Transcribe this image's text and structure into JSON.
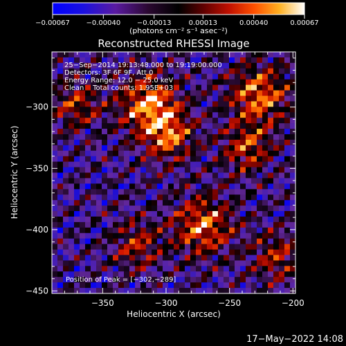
{
  "chart_data": {
    "type": "heatmap",
    "title": "Reconstructed RHESSI Image",
    "xlabel": "Heliocentric X (arcsec)",
    "ylabel": "Heliocentric Y (arcsec)",
    "xlim": [
      -390,
      -198
    ],
    "ylim": [
      -452,
      -255
    ],
    "x_ticks": [
      -350,
      -300,
      -250,
      -200
    ],
    "x_tick_labels": [
      "−350",
      "−300",
      "−250",
      "−200"
    ],
    "y_ticks": [
      -300,
      -350,
      -400,
      -450
    ],
    "y_tick_labels": [
      "−300",
      "−350",
      "−400",
      "−450"
    ],
    "colorbar": {
      "min": -0.00067,
      "max": 0.00067,
      "ticks": [
        -0.00067,
        -0.0004,
        -0.00013,
        0.00013,
        0.0004,
        0.00067
      ],
      "tick_labels": [
        "−0.00067",
        "−0.00040",
        "−0.00013",
        "0.00013",
        "0.00040",
        "0.00067"
      ],
      "unit_label": "(photons cm⁻² s⁻¹ asec⁻²)"
    },
    "info_lines": [
      "25−Sep−2014 19:13:48.000 to 19:19:00.000",
      "Detectors: 3F 6F 9F, Att 0",
      "Energy Range: 12.0 − 25.0 keV",
      "Clean    Total counts: 1.95E+03"
    ],
    "peak_label": "Position of Peak = [−302,−289]",
    "peak": {
      "x": -302,
      "y": -289
    },
    "grid": false,
    "colors": {
      "background": "#000000",
      "text": "#ffffff",
      "colormap_low": "#0000ff",
      "colormap_mid": "#000000",
      "colormap_high": "#ffffff"
    }
  },
  "footer": {
    "timestamp": "17−May−2022 14:08"
  }
}
